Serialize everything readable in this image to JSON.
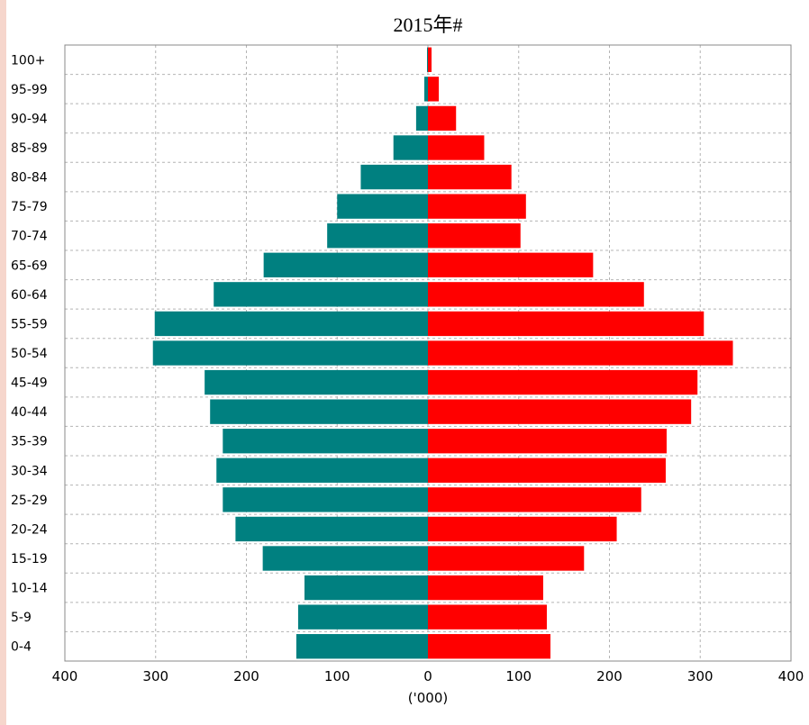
{
  "chart_data": {
    "type": "bar",
    "title": "2015年#",
    "xlabel": "('000)",
    "categories": [
      "0-4",
      "5-9",
      "10-14",
      "15-19",
      "20-24",
      "25-29",
      "30-34",
      "35-39",
      "40-44",
      "45-49",
      "50-54",
      "55-59",
      "60-64",
      "65-69",
      "70-74",
      "75-79",
      "80-84",
      "85-89",
      "90-94",
      "95-99",
      "100+"
    ],
    "series": [
      {
        "color": "#008080",
        "values": [
          145,
          143,
          136,
          182,
          212,
          226,
          233,
          226,
          240,
          246,
          303,
          301,
          236,
          181,
          111,
          100,
          74,
          38,
          13,
          4,
          1
        ]
      },
      {
        "color": "#ff0000",
        "values": [
          135,
          131,
          127,
          172,
          208,
          235,
          262,
          263,
          290,
          297,
          336,
          304,
          238,
          182,
          102,
          108,
          92,
          62,
          31,
          12,
          4
        ]
      }
    ],
    "xlim": [
      -400,
      400
    ],
    "xticks": [
      "400",
      "300",
      "200",
      "100",
      "0",
      "100",
      "200",
      "300",
      "400"
    ],
    "grid": true,
    "legend": "none"
  }
}
